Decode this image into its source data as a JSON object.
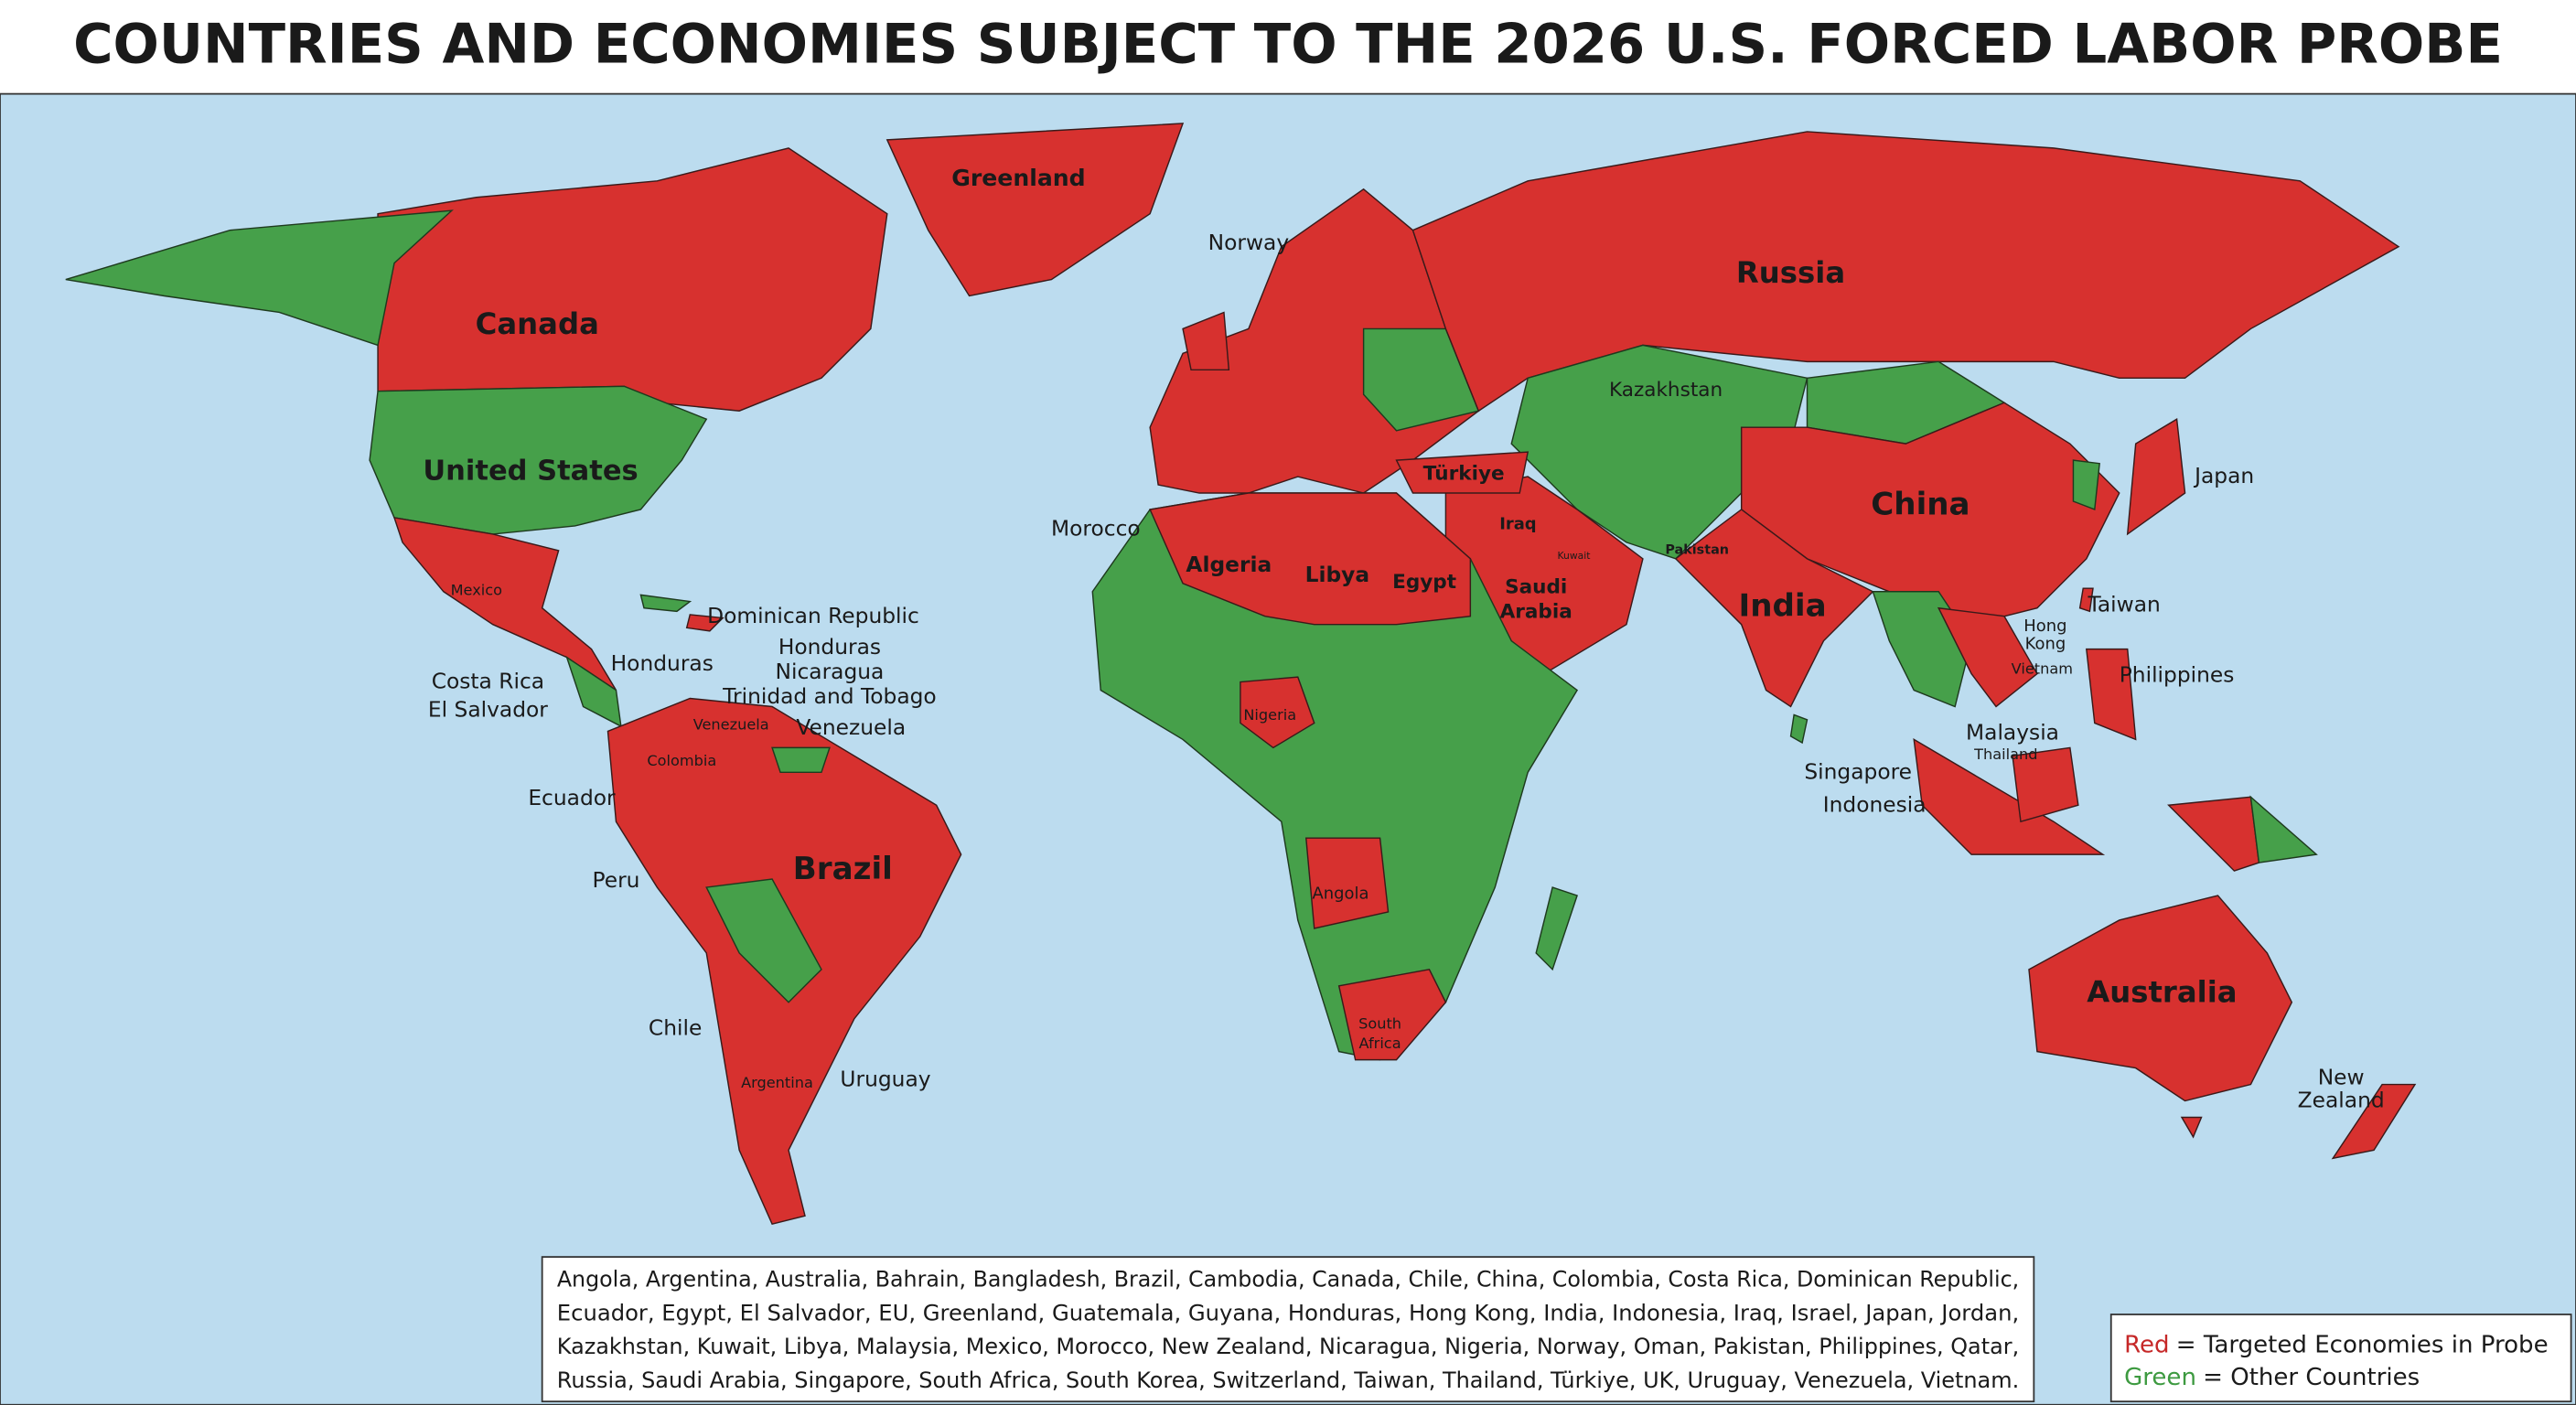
{
  "header": {
    "title": "COUNTRIES AND ECONOMIES SUBJECT TO THE 2026 U.S. FORCED LABOR PROBE"
  },
  "map": {
    "labels": [
      {
        "lines": [
          "Greenland"
        ]
      },
      {
        "lines": [
          "Norway"
        ]
      },
      {
        "lines": [
          "Russia"
        ]
      },
      {
        "lines": [
          "Canada"
        ]
      },
      {
        "lines": [
          "Kazakhstan"
        ]
      },
      {
        "lines": [
          "United States"
        ]
      },
      {
        "lines": [
          "Türkiye"
        ]
      },
      {
        "lines": [
          "Japan"
        ]
      },
      {
        "lines": [
          "China"
        ]
      },
      {
        "lines": [
          "Morocco"
        ]
      },
      {
        "lines": [
          "Iraq"
        ]
      },
      {
        "lines": [
          "Kuwait"
        ]
      },
      {
        "lines": [
          "Pakistan"
        ]
      },
      {
        "lines": [
          "Algeria"
        ]
      },
      {
        "lines": [
          "Libya"
        ]
      },
      {
        "lines": [
          "Egypt"
        ]
      },
      {
        "lines": [
          "Saudi",
          "Arabia"
        ]
      },
      {
        "lines": [
          "India"
        ]
      },
      {
        "lines": [
          "Mexico"
        ]
      },
      {
        "lines": [
          "Taiwan"
        ]
      },
      {
        "lines": [
          "Dominican Republic"
        ]
      },
      {
        "lines": [
          "Hong",
          "Kong"
        ]
      },
      {
        "lines": [
          "Honduras",
          "Nicaragua",
          "Trinidad and Tobago"
        ]
      },
      {
        "lines": [
          "Honduras"
        ]
      },
      {
        "lines": [
          "Vietnam"
        ]
      },
      {
        "lines": [
          "Philippines"
        ]
      },
      {
        "lines": [
          "Costa Rica",
          "El Salvador"
        ]
      },
      {
        "lines": [
          "Venezuela"
        ]
      },
      {
        "lines": [
          "Venezuela"
        ]
      },
      {
        "lines": [
          "Nigeria"
        ]
      },
      {
        "lines": [
          "Malaysia"
        ]
      },
      {
        "lines": [
          "Thailand"
        ]
      },
      {
        "lines": [
          "Colombia"
        ]
      },
      {
        "lines": [
          "Singapore"
        ]
      },
      {
        "lines": [
          "Indonesia"
        ]
      },
      {
        "lines": [
          "Ecuador"
        ]
      },
      {
        "lines": [
          "Brazil"
        ]
      },
      {
        "lines": [
          "Peru"
        ]
      },
      {
        "lines": [
          "Angola"
        ]
      },
      {
        "lines": [
          "Australia"
        ]
      },
      {
        "lines": [
          "Chile"
        ]
      },
      {
        "lines": [
          "South",
          "Africa"
        ]
      },
      {
        "lines": [
          "Argentina"
        ]
      },
      {
        "lines": [
          "Uruguay"
        ]
      },
      {
        "lines": [
          "New",
          "Zealand"
        ]
      }
    ]
  },
  "country_list": {
    "lines": [
      "Angola, Argentina, Australia, Bahrain, Bangladesh, Brazil, Cambodia, Canada, Chile, China, Colombia, Costa Rica, Dominican Republic,",
      "Ecuador, Egypt, El Salvador, EU, Greenland, Guatemala, Guyana, Honduras, Hong Kong, India, Indonesia, Iraq, Israel, Japan, Jordan,",
      "Kazakhstan, Kuwait, Libya, Malaysia, Mexico, Morocco, New Zealand, Nicaragua, Nigeria, Norway, Oman, Pakistan, Philippines, Qatar,",
      "Russia, Saudi Arabia, Singapore, South Africa, South Korea, Switzerland, Taiwan, Thailand, Türkiye, UK, Uruguay, Venezuela, Vietnam."
    ]
  },
  "legend": {
    "items": [
      {
        "key": "Red",
        "text": "= Targeted Economies in Probe"
      },
      {
        "key": "Green",
        "text": "= Other Countries"
      }
    ]
  }
}
